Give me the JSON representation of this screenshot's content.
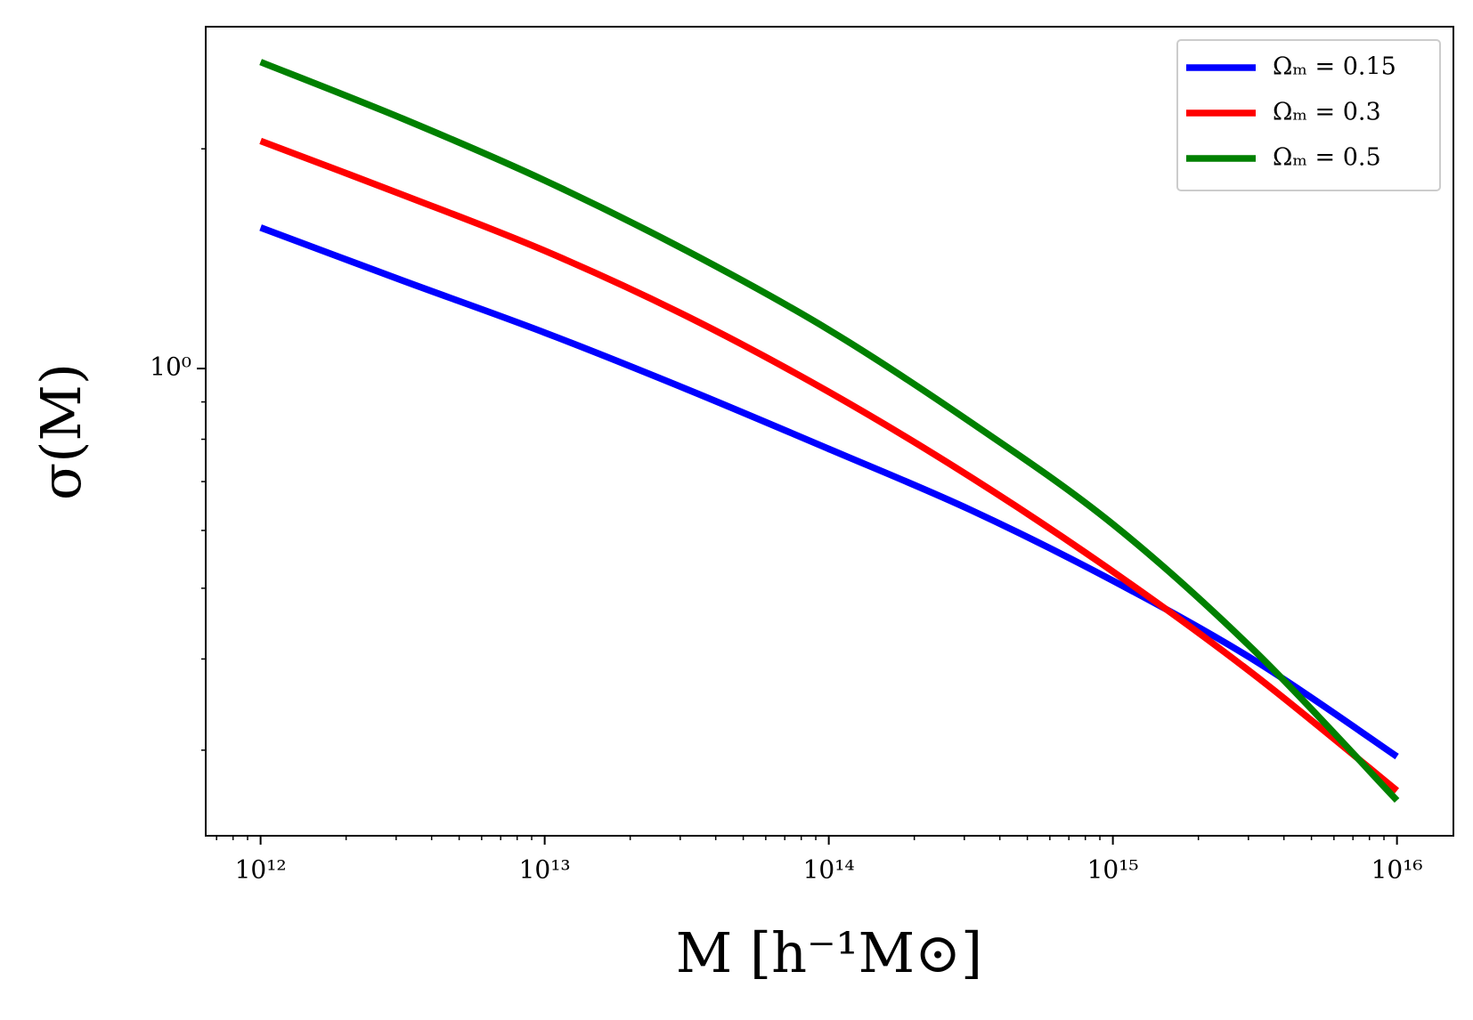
{
  "chart_data": {
    "type": "line",
    "xlabel": "M [h⁻¹M⊙]",
    "ylabel": "σ(M)",
    "x": [
      1000000000000.0,
      3160000000000.0,
      10000000000000.0,
      31600000000000.0,
      100000000000000.0,
      316000000000000.0,
      1000000000000000.0,
      3160000000000000.0,
      1e+16
    ],
    "series": [
      {
        "name": "Ωₘ = 0.15",
        "color": "#0000ff",
        "values": [
          1.56,
          1.32,
          1.12,
          0.937,
          0.776,
          0.64,
          0.512,
          0.398,
          0.294
        ]
      },
      {
        "name": "Ωₘ = 0.3",
        "color": "#ff0000",
        "values": [
          2.05,
          1.73,
          1.45,
          1.18,
          0.929,
          0.71,
          0.527,
          0.38,
          0.264
        ]
      },
      {
        "name": "Ωₘ = 0.5",
        "color": "#008000",
        "values": [
          2.63,
          2.2,
          1.81,
          1.45,
          1.13,
          0.844,
          0.612,
          0.41,
          0.256
        ]
      }
    ],
    "xscale": "log",
    "yscale": "log",
    "xlim": [
      641000000000.0,
      1.58e+16
    ],
    "ylim": [
      0.229,
      2.94
    ],
    "xticks": [
      {
        "value": 1000000000000.0,
        "label": "10¹²"
      },
      {
        "value": 10000000000000.0,
        "label": "10¹³"
      },
      {
        "value": 100000000000000.0,
        "label": "10¹⁴"
      },
      {
        "value": 1000000000000000.0,
        "label": "10¹⁵"
      },
      {
        "value": 1e+16,
        "label": "10¹⁶"
      }
    ],
    "yticks": [
      {
        "value": 1,
        "label": "10⁰"
      }
    ],
    "xminorticks": [
      700000000000.0,
      800000000000.0,
      900000000000.0,
      2000000000000.0,
      3000000000000.0,
      4000000000000.0,
      5000000000000.0,
      6000000000000.0,
      7000000000000.0,
      8000000000000.0,
      9000000000000.0,
      20000000000000.0,
      30000000000000.0,
      40000000000000.0,
      50000000000000.0,
      60000000000000.0,
      70000000000000.0,
      80000000000000.0,
      90000000000000.0,
      200000000000000.0,
      300000000000000.0,
      400000000000000.0,
      500000000000000.0,
      600000000000000.0,
      700000000000000.0,
      800000000000000.0,
      900000000000000.0,
      2000000000000000.0,
      3000000000000000.0,
      4000000000000000.0,
      5000000000000000.0,
      6000000000000000.0,
      7000000000000000.0,
      8000000000000000.0,
      9000000000000000.0
    ],
    "yminorticks": [
      0.3,
      0.4,
      0.5,
      0.6,
      0.7,
      0.8,
      0.9,
      2
    ],
    "grid": false,
    "legend": "upper right"
  }
}
